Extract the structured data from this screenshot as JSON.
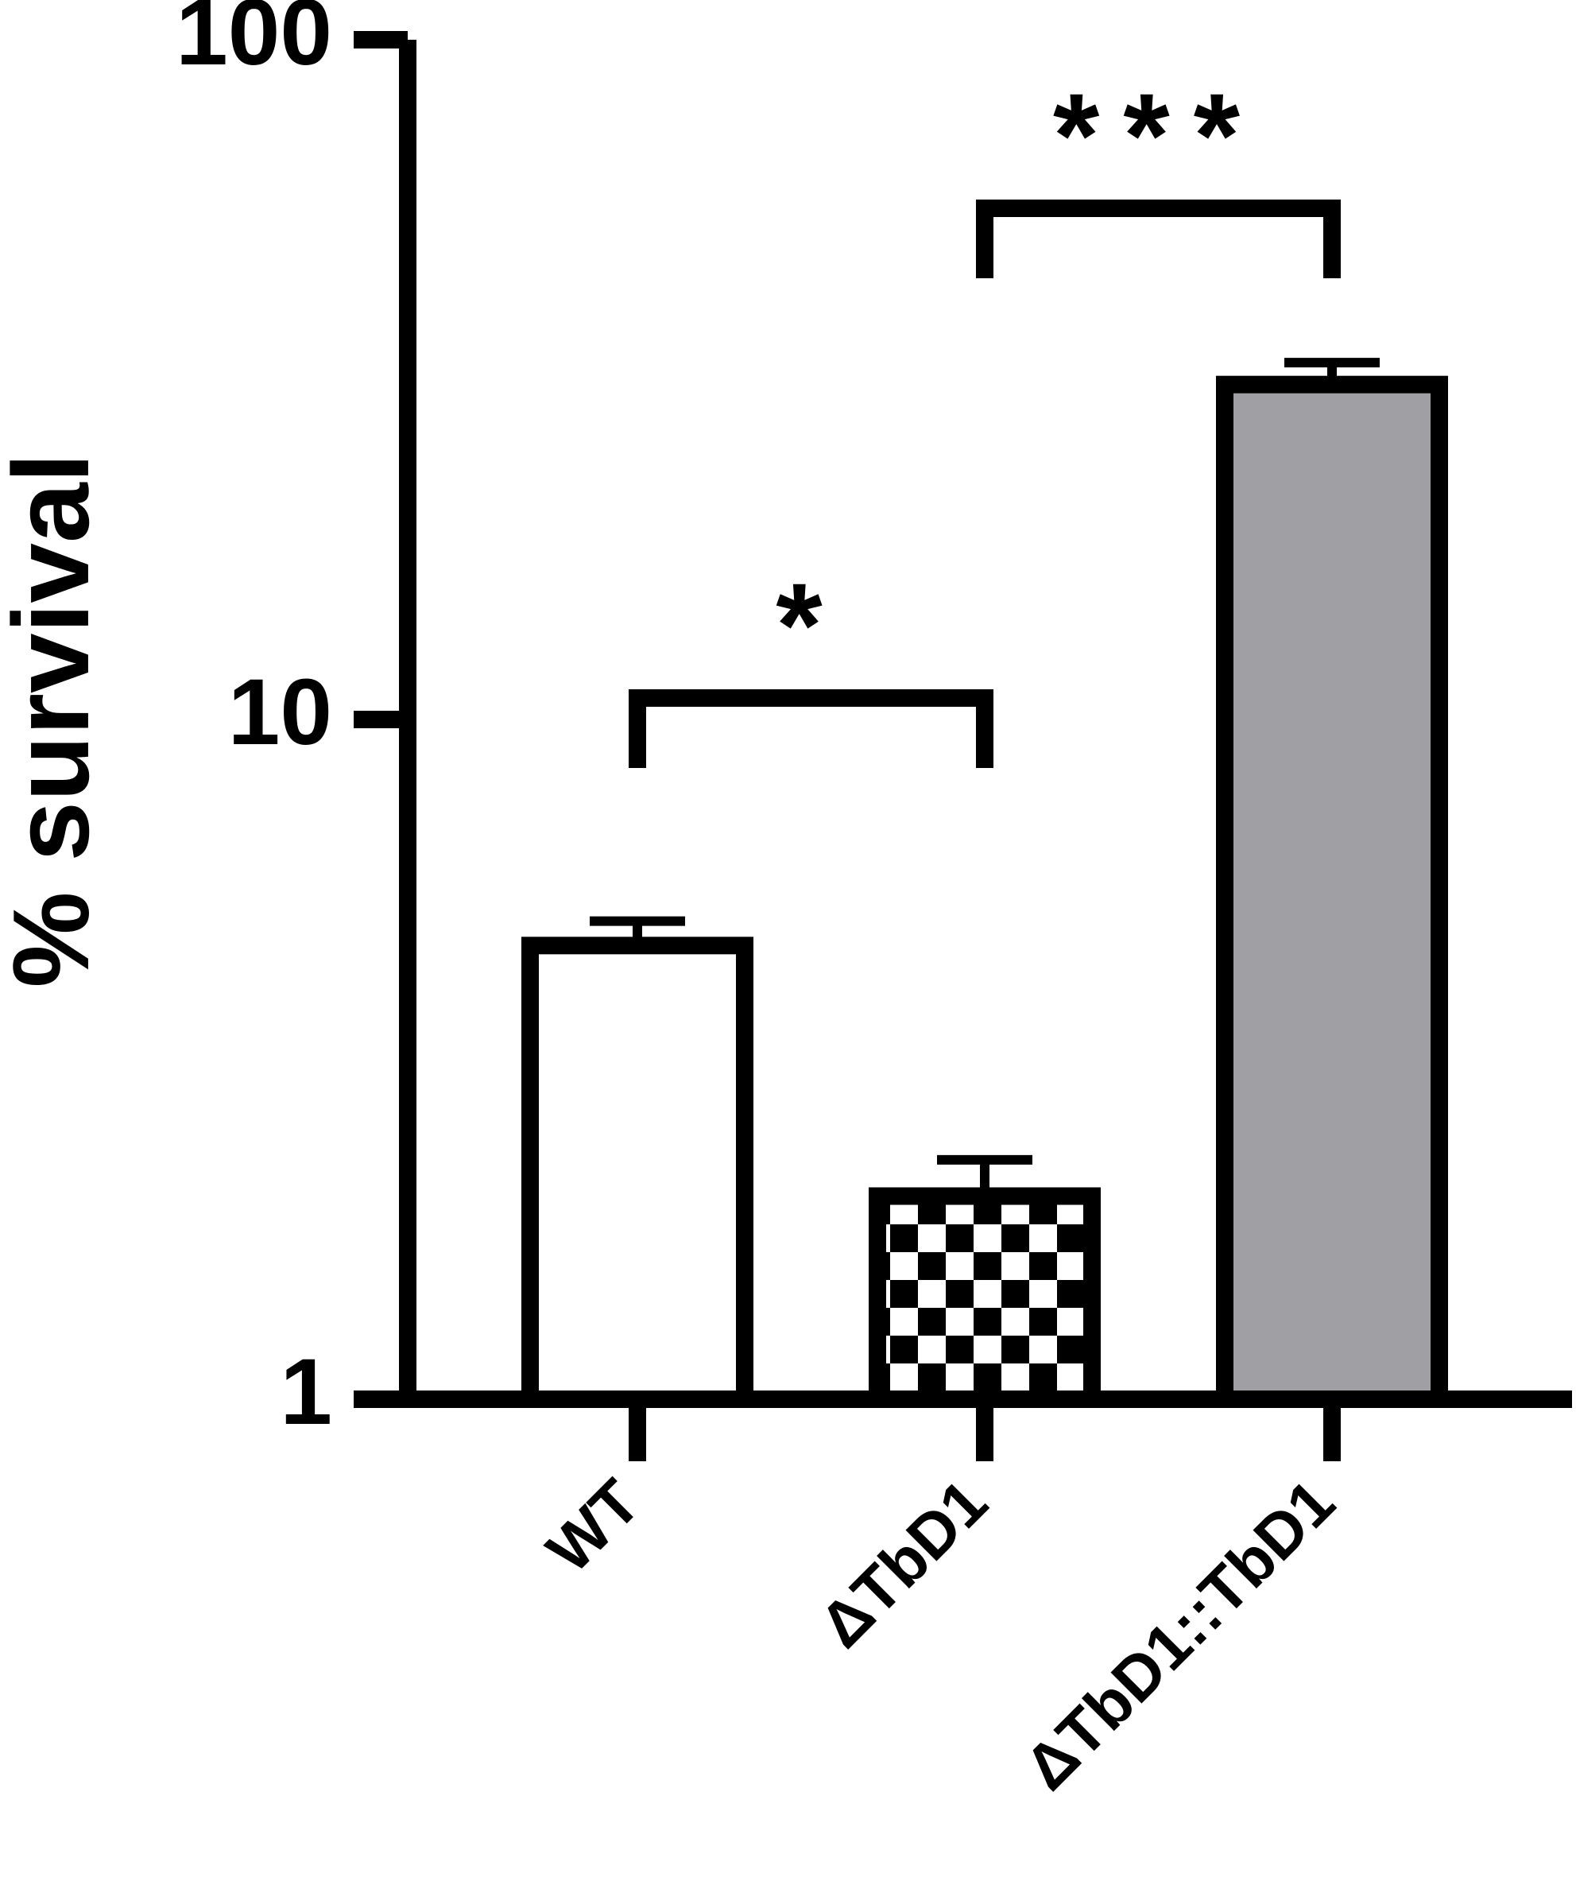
{
  "chart_data": {
    "type": "bar",
    "y_label": "% survival",
    "categories": [
      "WT",
      "ΔTbD1",
      "ΔTbD1::TbD1"
    ],
    "values": [
      4.65,
      1.99,
      31.1
    ],
    "errors": [
      0.4,
      0.26,
      2.4
    ],
    "fills": [
      "#ffffff",
      "checker",
      "#a09fa4"
    ],
    "ylim": [
      1,
      100
    ],
    "log_scale": true,
    "yticks": [
      1,
      10,
      100
    ],
    "annotations": [
      {
        "label": "*",
        "from": 0,
        "to": 1
      },
      {
        "label": "***",
        "from": 1,
        "to": 2
      }
    ]
  }
}
